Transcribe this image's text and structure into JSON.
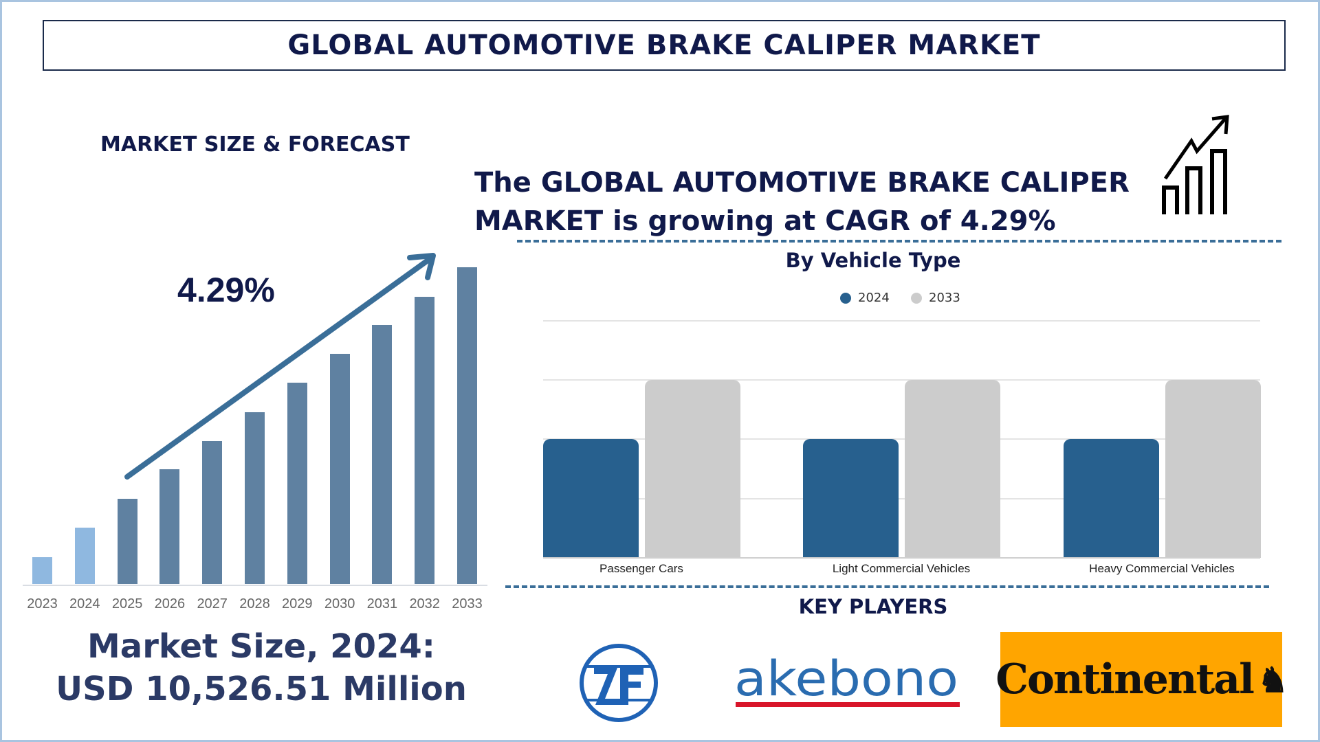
{
  "title": "GLOBAL AUTOMOTIVE BRAKE CALIPER MARKET",
  "left_panel": {
    "heading": "MARKET SIZE & FORECAST",
    "cagr": "4.29%",
    "market_size_line1": "Market Size, 2024:",
    "market_size_line2": "USD 10,526.51 Million"
  },
  "headline": {
    "line1": "The GLOBAL AUTOMOTIVE BRAKE CALIPER",
    "line2": "MARKET is growing at CAGR of 4.29%",
    "icon": "growth-chart-icon"
  },
  "segment_chart": {
    "title": "By Vehicle Type",
    "legend": [
      {
        "label": "2024",
        "color": "#27608e"
      },
      {
        "label": "2033",
        "color": "#cccccc"
      }
    ]
  },
  "key_players": {
    "heading": "KEY PLAYERS",
    "logos": [
      "ZF",
      "akebono",
      "Continental"
    ]
  },
  "colors": {
    "navy": "#10194a",
    "bar_history": "#8fb8e0",
    "bar_forecast": "#5f81a1",
    "arrow": "#3a6e98",
    "series_2024": "#27608e",
    "series_2033": "#cccccc",
    "continental_bg": "#ffa500",
    "zf_blue": "#1f62b5",
    "akebono_red": "#d8152a"
  },
  "chart_data": [
    {
      "type": "bar",
      "title": "MARKET SIZE & FORECAST",
      "categories": [
        "2023",
        "2024",
        "2025",
        "2026",
        "2027",
        "2028",
        "2029",
        "2030",
        "2031",
        "2032",
        "2033"
      ],
      "values": [
        39,
        82,
        124,
        167,
        208,
        250,
        293,
        335,
        377,
        418,
        461
      ],
      "value_note": "relative bar heights in px (no axis values shown); 2023-2024 historical (light blue), 2025-2033 forecast",
      "annotation": "4.29% CAGR arrow",
      "xlabel": "",
      "ylabel": "",
      "grid": false
    },
    {
      "type": "bar",
      "title": "By Vehicle Type",
      "categories": [
        "Passenger Cars",
        "Light Commercial Vehicles",
        "Heavy Commercial Vehicles"
      ],
      "series": [
        {
          "name": "2024",
          "values": [
            2,
            2,
            2
          ]
        },
        {
          "name": "2033",
          "values": [
            3,
            3,
            3
          ]
        }
      ],
      "value_note": "relative gridline units (gridlines at 0,1,2,3,4; no tick labels shown)",
      "ylim": [
        0,
        4
      ],
      "grid": true,
      "legend_position": "top"
    }
  ]
}
